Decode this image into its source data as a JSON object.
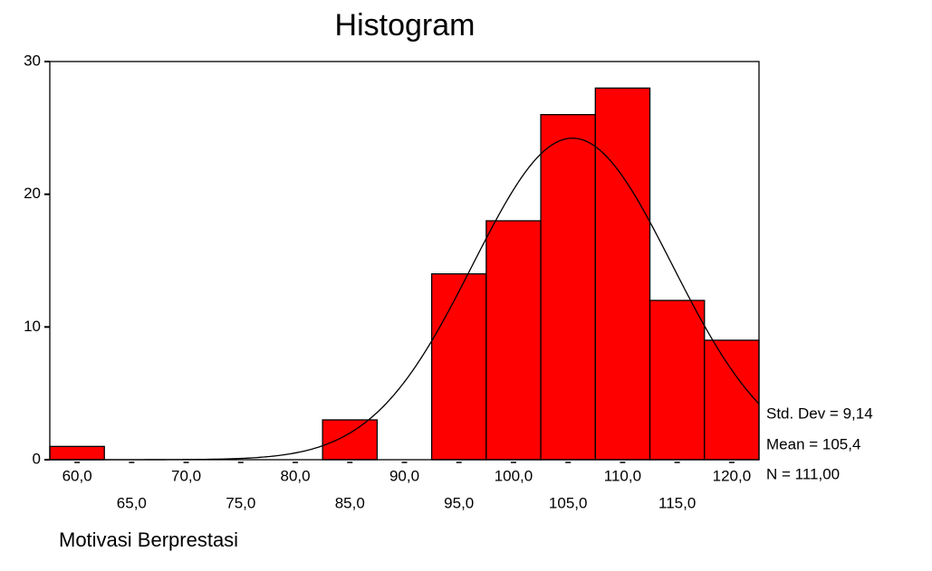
{
  "chart_data": {
    "type": "histogram",
    "title": "Histogram",
    "x_label": "Motivasi Berprestasi",
    "bins": [
      57.5,
      62.5,
      67.5,
      72.5,
      77.5,
      82.5,
      87.5,
      92.5,
      97.5,
      102.5,
      107.5,
      112.5,
      117.5,
      122.5
    ],
    "values": [
      1,
      0,
      0,
      0,
      0,
      3,
      0,
      14,
      18,
      26,
      28,
      12,
      9
    ],
    "color": "#ff0000",
    "xlim": [
      57.5,
      122.5
    ],
    "xticks": [
      {
        "value": 60,
        "label": "60,0"
      },
      {
        "value": 65,
        "label": "65,0"
      },
      {
        "value": 70,
        "label": "70,0"
      },
      {
        "value": 75,
        "label": "75,0"
      },
      {
        "value": 80,
        "label": "80,0"
      },
      {
        "value": 85,
        "label": "85,0"
      },
      {
        "value": 90,
        "label": "90,0"
      },
      {
        "value": 95,
        "label": "95,0"
      },
      {
        "value": 100,
        "label": "100,0"
      },
      {
        "value": 105,
        "label": "105,0"
      },
      {
        "value": 110,
        "label": "110,0"
      },
      {
        "value": 115,
        "label": "115,0"
      },
      {
        "value": 120,
        "label": "120,0"
      }
    ],
    "ylim": [
      0,
      30
    ],
    "yticks": [
      0,
      10,
      20,
      30
    ],
    "stats": {
      "std_dev": {
        "value": 9.14,
        "label": "Std. Dev = 9,14"
      },
      "mean": {
        "value": 105.4,
        "label": "Mean = 105,4"
      },
      "n": {
        "value": 111,
        "label": "N = 111,00"
      }
    }
  }
}
